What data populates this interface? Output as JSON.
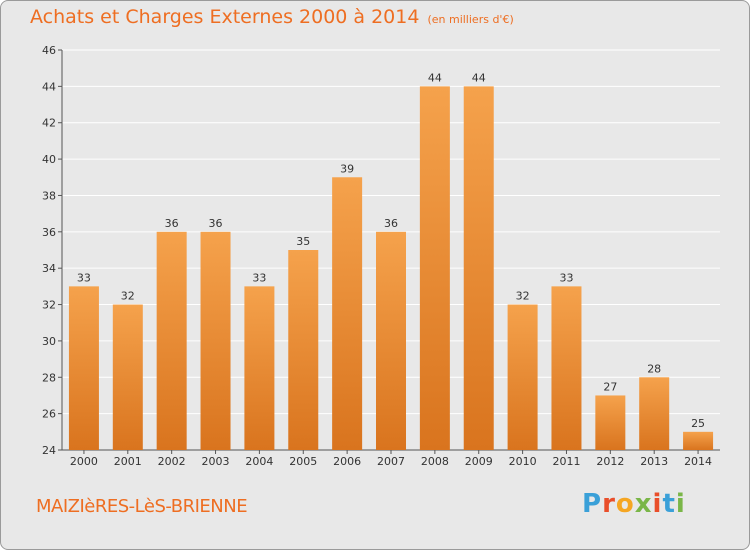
{
  "title": "Achats et Charges Externes 2000 à 2014",
  "subtitle": "(en milliers d'€)",
  "commune": "MAIZIèRES-LèS-BRIENNE",
  "brand": {
    "letters": [
      "P",
      "r",
      "o",
      "x",
      "i",
      "t",
      "i"
    ],
    "colors": [
      "#3aa0d8",
      "#e94e2a",
      "#f5a623",
      "#7ab648",
      "#e94e2a",
      "#3aa0d8",
      "#7ab648"
    ]
  },
  "colors": {
    "bar_top": "#f5a24c",
    "bar_bottom": "#d9741e",
    "grid": "#ffffff",
    "axis": "#555555"
  },
  "chart_data": {
    "type": "bar",
    "categories": [
      "2000",
      "2001",
      "2002",
      "2003",
      "2004",
      "2005",
      "2006",
      "2007",
      "2008",
      "2009",
      "2010",
      "2011",
      "2012",
      "2013",
      "2014"
    ],
    "values": [
      33,
      32,
      36,
      36,
      33,
      35,
      39,
      36,
      44,
      44,
      32,
      33,
      27,
      28,
      25
    ],
    "yticks": [
      24,
      26,
      28,
      30,
      32,
      34,
      36,
      38,
      40,
      42,
      44,
      46
    ],
    "ylim": [
      24,
      46
    ],
    "grid": true
  }
}
